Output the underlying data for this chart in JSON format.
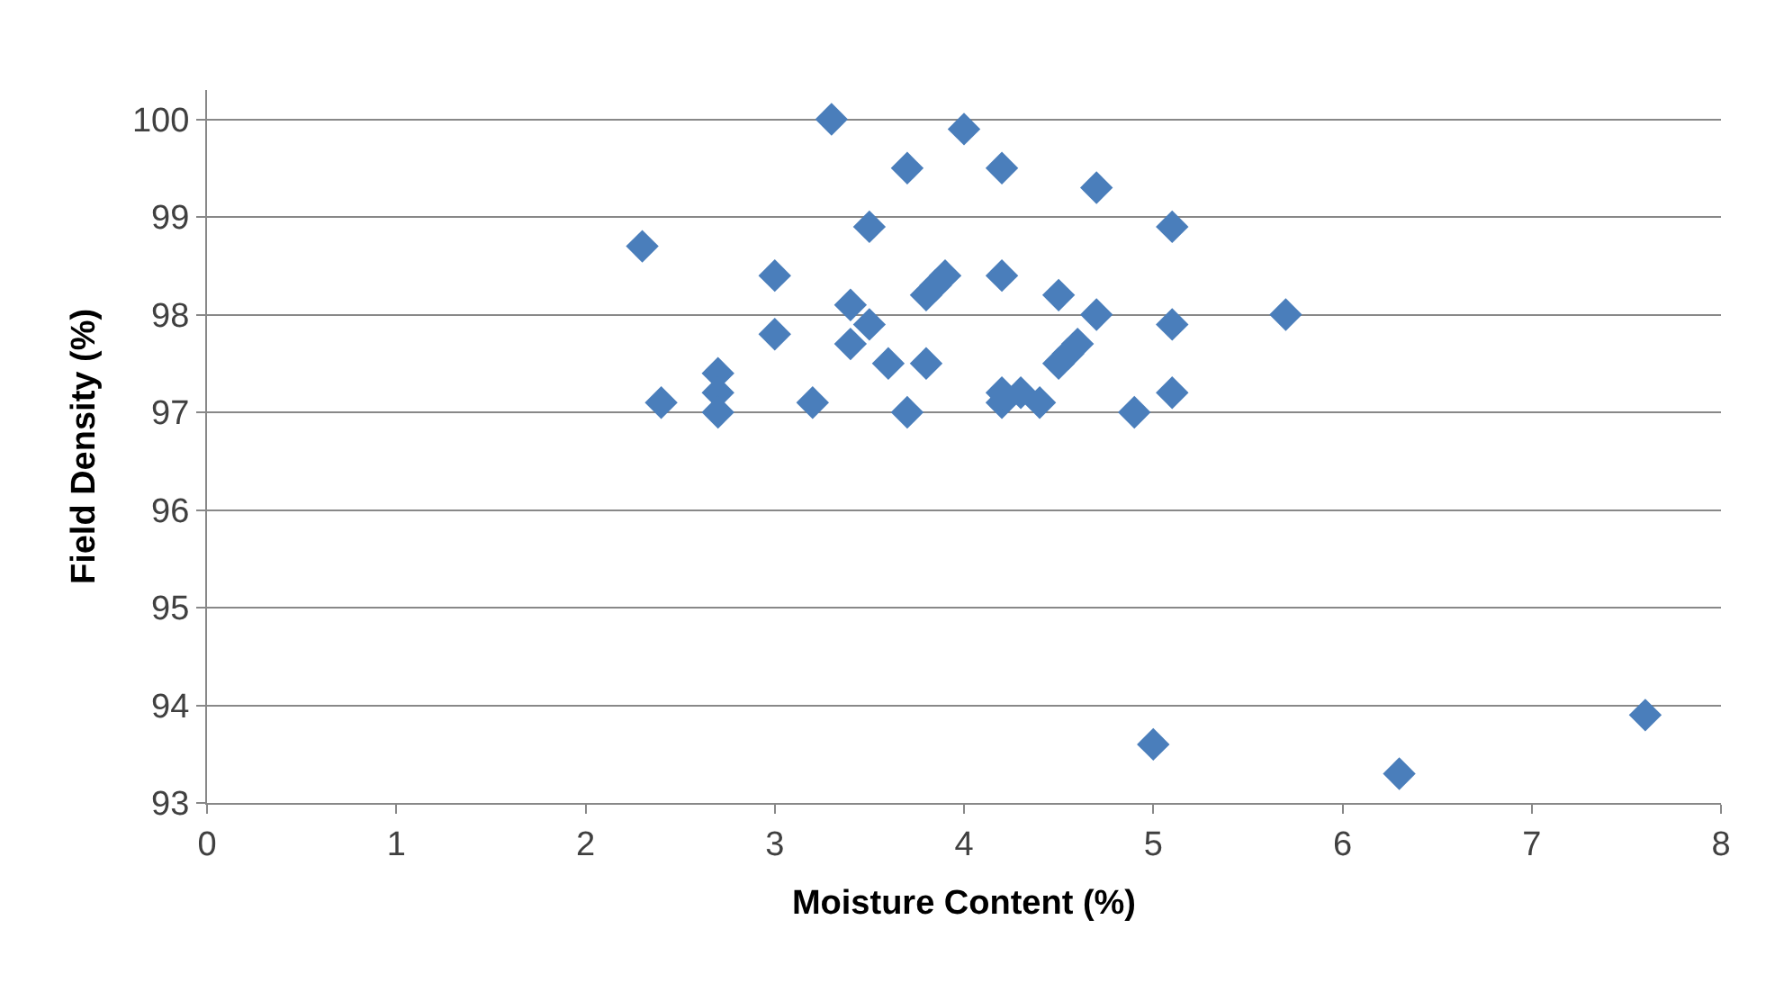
{
  "chart_data": {
    "type": "scatter",
    "xlabel": "Moisture Content (%)",
    "ylabel": "Field Density (%)",
    "x": [
      2.3,
      2.4,
      2.7,
      2.7,
      2.7,
      3.0,
      3.0,
      3.2,
      3.3,
      3.4,
      3.4,
      3.5,
      3.5,
      3.6,
      3.7,
      3.7,
      3.8,
      3.8,
      3.9,
      3.85,
      4.0,
      4.2,
      4.2,
      4.2,
      4.2,
      4.3,
      4.4,
      4.5,
      4.5,
      4.55,
      4.6,
      4.7,
      4.7,
      4.9,
      5.0,
      5.1,
      5.1,
      5.1,
      5.7,
      6.3,
      7.6
    ],
    "values": [
      98.7,
      97.1,
      97.4,
      97.2,
      97.0,
      98.4,
      97.8,
      97.1,
      100.0,
      98.1,
      97.7,
      97.9,
      98.9,
      97.5,
      99.5,
      97.0,
      98.2,
      97.5,
      98.4,
      98.3,
      99.9,
      99.5,
      98.4,
      97.1,
      97.2,
      97.2,
      97.1,
      98.2,
      97.5,
      97.6,
      97.7,
      99.3,
      98.0,
      97.0,
      93.6,
      98.9,
      97.9,
      97.2,
      98.0,
      93.3,
      93.9
    ],
    "color": "#4a7ebb",
    "marker": "diamond",
    "xlim": [
      0,
      8
    ],
    "xticks": [
      0,
      1,
      2,
      3,
      4,
      5,
      6,
      7,
      8
    ],
    "ylim": [
      93,
      100.3
    ],
    "yticks": [
      93,
      94,
      95,
      96,
      97,
      98,
      99,
      100
    ],
    "grid": "y"
  }
}
